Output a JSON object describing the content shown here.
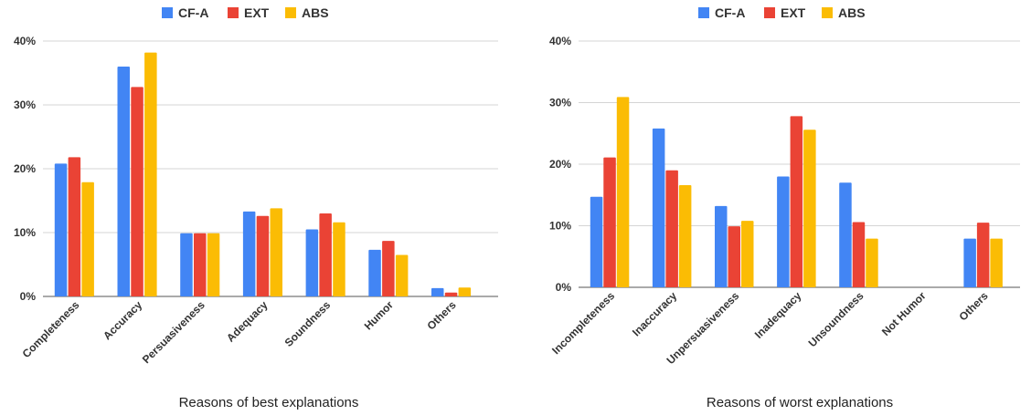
{
  "chart_data": [
    {
      "type": "bar",
      "title": "",
      "xlabel": "Reasons of best explanations",
      "ylabel": "",
      "ylim": [
        0,
        40
      ],
      "yticks": [
        "0%",
        "10%",
        "20%",
        "30%",
        "40%"
      ],
      "grid": true,
      "legend_position": "top",
      "categories": [
        "Completeness",
        "Accuracy",
        "Persuasiveness",
        "Adequacy",
        "Soundness",
        "Humor",
        "Others"
      ],
      "series": [
        {
          "name": "CF-A",
          "color": "#4285F4",
          "values": [
            20.8,
            36.0,
            9.9,
            13.3,
            10.5,
            7.3,
            1.3
          ]
        },
        {
          "name": "EXT",
          "color": "#EA4335",
          "values": [
            21.8,
            32.8,
            9.9,
            12.6,
            13.0,
            8.7,
            0.6
          ]
        },
        {
          "name": "ABS",
          "color": "#FBBC04",
          "values": [
            17.9,
            38.2,
            9.9,
            13.8,
            11.6,
            6.5,
            1.4
          ]
        }
      ]
    },
    {
      "type": "bar",
      "title": "",
      "xlabel": "Reasons of worst explanations",
      "ylabel": "",
      "ylim": [
        0,
        40
      ],
      "yticks": [
        "0%",
        "10%",
        "20%",
        "30%",
        "40%"
      ],
      "grid": true,
      "legend_position": "top",
      "categories": [
        "Incompleteness",
        "Inaccuracy",
        "Unpersuasiveness",
        "Inadequacy",
        "Unsoundness",
        "Not Humor",
        "Others"
      ],
      "series": [
        {
          "name": "CF-A",
          "color": "#4285F4",
          "values": [
            14.7,
            25.8,
            13.2,
            18.0,
            17.0,
            0,
            7.9
          ]
        },
        {
          "name": "EXT",
          "color": "#EA4335",
          "values": [
            21.1,
            19.0,
            9.9,
            27.8,
            10.6,
            0,
            10.5
          ]
        },
        {
          "name": "ABS",
          "color": "#FBBC04",
          "values": [
            30.9,
            16.6,
            10.8,
            25.6,
            7.9,
            0,
            7.9
          ]
        }
      ]
    }
  ]
}
